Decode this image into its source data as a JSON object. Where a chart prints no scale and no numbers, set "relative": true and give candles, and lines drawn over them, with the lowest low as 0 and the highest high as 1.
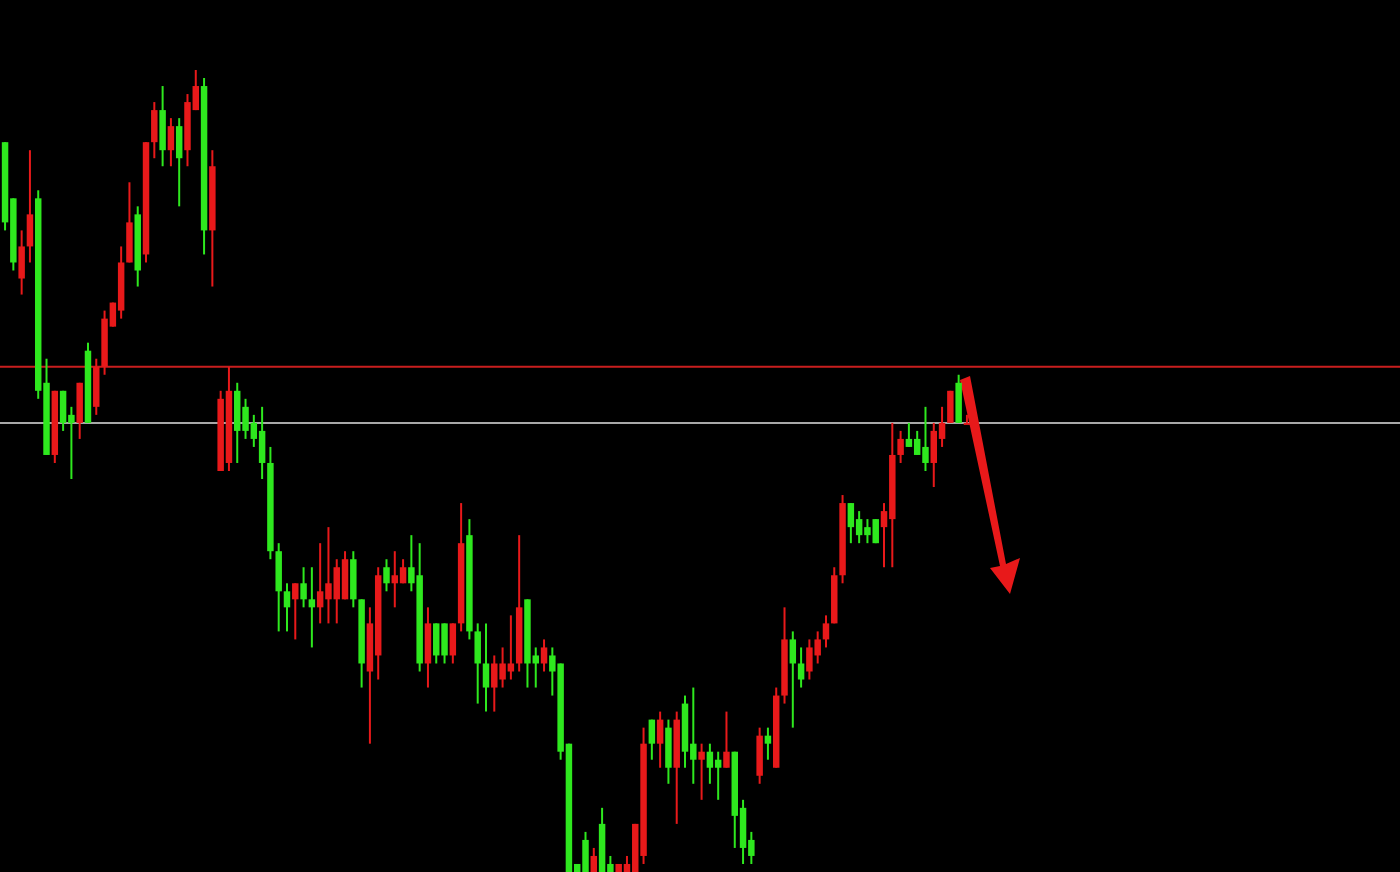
{
  "chart_data": {
    "type": "candlestick",
    "relative": true,
    "categories": [
      null,
      null,
      null,
      null,
      null,
      null,
      null,
      null,
      null,
      null,
      null,
      null,
      null,
      null,
      null,
      null,
      null,
      null,
      null,
      null,
      null,
      null,
      null,
      null,
      null,
      null,
      null,
      null,
      null,
      null,
      null,
      null,
      null,
      null,
      null,
      null,
      null,
      null,
      null,
      null,
      null,
      null,
      null,
      null,
      null,
      null,
      null,
      null,
      null,
      null,
      null,
      null,
      null,
      null,
      null,
      null,
      null,
      null,
      null,
      null,
      null,
      null,
      null,
      null,
      null,
      null,
      null,
      null,
      null,
      null,
      null,
      null,
      null,
      null,
      null,
      null,
      null,
      null,
      null,
      null,
      null,
      null,
      null,
      null,
      null,
      null,
      null,
      null,
      null,
      null,
      null,
      null,
      null,
      null,
      null,
      null,
      null,
      null,
      null,
      null,
      null,
      null,
      null,
      null,
      null,
      null,
      null,
      null,
      null,
      null,
      null,
      null,
      null,
      null,
      null,
      null,
      null
    ],
    "ohlc": [
      [
        0.91,
        0.91,
        0.8,
        0.81
      ],
      [
        0.84,
        0.84,
        0.75,
        0.76
      ],
      [
        0.74,
        0.8,
        0.72,
        0.78
      ],
      [
        0.78,
        0.9,
        0.76,
        0.82
      ],
      [
        0.84,
        0.85,
        0.59,
        0.6
      ],
      [
        0.61,
        0.64,
        0.52,
        0.52
      ],
      [
        0.52,
        0.6,
        0.51,
        0.6
      ],
      [
        0.6,
        0.6,
        0.55,
        0.56
      ],
      [
        0.57,
        0.58,
        0.49,
        0.56
      ],
      [
        0.56,
        0.61,
        0.54,
        0.61
      ],
      [
        0.65,
        0.66,
        0.56,
        0.56
      ],
      [
        0.58,
        0.64,
        0.57,
        0.63
      ],
      [
        0.63,
        0.7,
        0.62,
        0.69
      ],
      [
        0.68,
        0.71,
        0.68,
        0.71
      ],
      [
        0.7,
        0.78,
        0.69,
        0.76
      ],
      [
        0.76,
        0.86,
        0.76,
        0.81
      ],
      [
        0.82,
        0.83,
        0.73,
        0.75
      ],
      [
        0.77,
        0.91,
        0.76,
        0.91
      ],
      [
        0.91,
        0.96,
        0.89,
        0.95
      ],
      [
        0.95,
        0.98,
        0.88,
        0.9
      ],
      [
        0.9,
        0.94,
        0.88,
        0.93
      ],
      [
        0.93,
        0.94,
        0.83,
        0.89
      ],
      [
        0.9,
        0.97,
        0.88,
        0.96
      ],
      [
        0.95,
        1.0,
        0.95,
        0.98
      ],
      [
        0.98,
        0.99,
        0.77,
        0.8
      ],
      [
        0.8,
        0.9,
        0.73,
        0.88
      ],
      [
        0.5,
        0.6,
        0.5,
        0.59
      ],
      [
        0.51,
        0.63,
        0.5,
        0.6
      ],
      [
        0.6,
        0.61,
        0.51,
        0.55
      ],
      [
        0.58,
        0.59,
        0.54,
        0.55
      ],
      [
        0.56,
        0.57,
        0.53,
        0.54
      ],
      [
        0.55,
        0.58,
        0.49,
        0.51
      ],
      [
        0.51,
        0.53,
        0.39,
        0.4
      ],
      [
        0.4,
        0.41,
        0.3,
        0.35
      ],
      [
        0.35,
        0.36,
        0.3,
        0.33
      ],
      [
        0.34,
        0.36,
        0.29,
        0.36
      ],
      [
        0.36,
        0.38,
        0.33,
        0.34
      ],
      [
        0.34,
        0.38,
        0.28,
        0.33
      ],
      [
        0.33,
        0.41,
        0.31,
        0.35
      ],
      [
        0.34,
        0.43,
        0.31,
        0.36
      ],
      [
        0.34,
        0.39,
        0.31,
        0.38
      ],
      [
        0.34,
        0.4,
        0.34,
        0.39
      ],
      [
        0.39,
        0.4,
        0.33,
        0.34
      ],
      [
        0.34,
        0.34,
        0.23,
        0.26
      ],
      [
        0.25,
        0.33,
        0.16,
        0.31
      ],
      [
        0.27,
        0.38,
        0.24,
        0.37
      ],
      [
        0.38,
        0.39,
        0.35,
        0.36
      ],
      [
        0.36,
        0.4,
        0.33,
        0.37
      ],
      [
        0.36,
        0.39,
        0.36,
        0.38
      ],
      [
        0.38,
        0.42,
        0.35,
        0.36
      ],
      [
        0.37,
        0.41,
        0.25,
        0.26
      ],
      [
        0.26,
        0.33,
        0.23,
        0.31
      ],
      [
        0.31,
        0.31,
        0.26,
        0.27
      ],
      [
        0.31,
        0.31,
        0.26,
        0.27
      ],
      [
        0.27,
        0.31,
        0.26,
        0.31
      ],
      [
        0.31,
        0.46,
        0.3,
        0.41
      ],
      [
        0.42,
        0.44,
        0.29,
        0.3
      ],
      [
        0.3,
        0.31,
        0.21,
        0.26
      ],
      [
        0.26,
        0.31,
        0.2,
        0.23
      ],
      [
        0.23,
        0.27,
        0.2,
        0.26
      ],
      [
        0.24,
        0.28,
        0.23,
        0.26
      ],
      [
        0.25,
        0.32,
        0.24,
        0.26
      ],
      [
        0.26,
        0.42,
        0.25,
        0.33
      ],
      [
        0.34,
        0.34,
        0.23,
        0.26
      ],
      [
        0.27,
        0.28,
        0.23,
        0.26
      ],
      [
        0.26,
        0.29,
        0.25,
        0.28
      ],
      [
        0.27,
        0.28,
        0.22,
        0.25
      ],
      [
        0.26,
        0.26,
        0.14,
        0.15
      ],
      [
        0.16,
        0.16,
        0,
        0
      ],
      [
        0.01,
        0.01,
        0,
        0
      ],
      [
        0.04,
        0.05,
        0,
        0
      ],
      [
        0,
        0.03,
        0,
        0.02
      ],
      [
        0.06,
        0.08,
        0,
        0
      ],
      [
        0.01,
        0.02,
        0,
        0
      ],
      [
        0,
        0.01,
        0,
        0.01
      ],
      [
        0,
        0.02,
        0,
        0.01
      ],
      [
        0,
        0.06,
        0,
        0.06
      ],
      [
        0.02,
        0.18,
        0.01,
        0.16
      ],
      [
        0.19,
        0.19,
        0.14,
        0.16
      ],
      [
        0.16,
        0.2,
        0.13,
        0.19
      ],
      [
        0.18,
        0.19,
        0.11,
        0.13
      ],
      [
        0.13,
        0.2,
        0.06,
        0.19
      ],
      [
        0.21,
        0.22,
        0.13,
        0.15
      ],
      [
        0.16,
        0.23,
        0.11,
        0.14
      ],
      [
        0.14,
        0.16,
        0.09,
        0.15
      ],
      [
        0.15,
        0.16,
        0.11,
        0.13
      ],
      [
        0.14,
        0.15,
        0.09,
        0.13
      ],
      [
        0.13,
        0.2,
        0.13,
        0.15
      ],
      [
        0.15,
        0.15,
        0.03,
        0.07
      ],
      [
        0.08,
        0.09,
        0.01,
        0.03
      ],
      [
        0.04,
        0.05,
        0.01,
        0.02
      ],
      [
        0.12,
        0.18,
        0.11,
        0.17
      ],
      [
        0.17,
        0.18,
        0.14,
        0.16
      ],
      [
        0.13,
        0.23,
        0.13,
        0.22
      ],
      [
        0.22,
        0.33,
        0.21,
        0.29
      ],
      [
        0.29,
        0.3,
        0.18,
        0.26
      ],
      [
        0.26,
        0.28,
        0.23,
        0.24
      ],
      [
        0.25,
        0.29,
        0.24,
        0.28
      ],
      [
        0.27,
        0.3,
        0.26,
        0.29
      ],
      [
        0.29,
        0.32,
        0.28,
        0.31
      ],
      [
        0.31,
        0.38,
        0.31,
        0.37
      ],
      [
        0.37,
        0.47,
        0.36,
        0.46
      ],
      [
        0.46,
        0.46,
        0.41,
        0.43
      ],
      [
        0.44,
        0.45,
        0.41,
        0.42
      ],
      [
        0.43,
        0.44,
        0.41,
        0.42
      ],
      [
        0.44,
        0.44,
        0.41,
        0.41
      ],
      [
        0.43,
        0.46,
        0.38,
        0.45
      ],
      [
        0.44,
        0.56,
        0.38,
        0.52
      ],
      [
        0.52,
        0.55,
        0.51,
        0.54
      ],
      [
        0.54,
        0.56,
        0.53,
        0.53
      ],
      [
        0.54,
        0.55,
        0.52,
        0.52
      ],
      [
        0.53,
        0.58,
        0.5,
        0.51
      ],
      [
        0.51,
        0.56,
        0.48,
        0.55
      ],
      [
        0.54,
        0.58,
        0.53,
        0.56
      ],
      [
        0.56,
        0.6,
        0.56,
        0.6
      ],
      [
        0.61,
        0.62,
        0.56,
        0.56
      ],
      [
        0.56,
        0.57,
        0.56,
        0.56
      ]
    ],
    "colors": [
      "#2ee81e",
      "#2ee81e",
      "#e8191a",
      "#e8191a",
      "#2ee81e",
      "#2ee81e",
      "#e8191a",
      "#2ee81e",
      "#2ee81e",
      "#e8191a",
      "#2ee81e",
      "#e8191a",
      "#e8191a",
      "#e8191a",
      "#e8191a",
      "#e8191a",
      "#2ee81e",
      "#e8191a",
      "#e8191a",
      "#2ee81e",
      "#e8191a",
      "#2ee81e",
      "#e8191a",
      "#e8191a",
      "#2ee81e",
      "#e8191a",
      "#e8191a",
      "#e8191a",
      "#2ee81e",
      "#2ee81e",
      "#2ee81e",
      "#2ee81e",
      "#2ee81e",
      "#2ee81e",
      "#2ee81e",
      "#e8191a",
      "#2ee81e",
      "#2ee81e",
      "#e8191a",
      "#e8191a",
      "#e8191a",
      "#e8191a",
      "#2ee81e",
      "#2ee81e",
      "#e8191a",
      "#e8191a",
      "#2ee81e",
      "#e8191a",
      "#e8191a",
      "#2ee81e",
      "#2ee81e",
      "#e8191a",
      "#2ee81e",
      "#2ee81e",
      "#e8191a",
      "#e8191a",
      "#2ee81e",
      "#2ee81e",
      "#2ee81e",
      "#e8191a",
      "#e8191a",
      "#e8191a",
      "#e8191a",
      "#2ee81e",
      "#2ee81e",
      "#e8191a",
      "#2ee81e",
      "#2ee81e",
      "#2ee81e",
      "#2ee81e",
      "#2ee81e",
      "#e8191a",
      "#2ee81e",
      "#2ee81e",
      "#e8191a",
      "#e8191a",
      "#e8191a",
      "#e8191a",
      "#2ee81e",
      "#e8191a",
      "#2ee81e",
      "#e8191a",
      "#2ee81e",
      "#2ee81e",
      "#e8191a",
      "#2ee81e",
      "#2ee81e",
      "#e8191a",
      "#2ee81e",
      "#2ee81e",
      "#2ee81e",
      "#e8191a",
      "#2ee81e",
      "#e8191a",
      "#e8191a",
      "#2ee81e",
      "#2ee81e",
      "#e8191a",
      "#e8191a",
      "#e8191a",
      "#e8191a",
      "#e8191a",
      "#2ee81e",
      "#2ee81e",
      "#2ee81e",
      "#2ee81e",
      "#e8191a",
      "#e8191a",
      "#e8191a",
      "#2ee81e",
      "#2ee81e",
      "#2ee81e",
      "#e8191a",
      "#e8191a",
      "#e8191a",
      "#2ee81e",
      "#e8191a"
    ],
    "ref_lines": [
      {
        "axis": "y",
        "value": 0.63,
        "color": "#c81e1e"
      },
      {
        "axis": "y",
        "value": 0.56,
        "color": "#a8a8a8"
      }
    ]
  }
}
